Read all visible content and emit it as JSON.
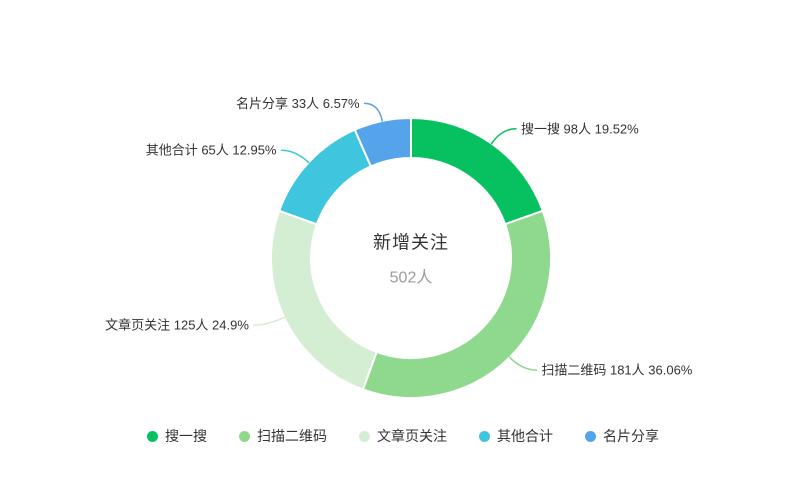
{
  "chart_data": {
    "type": "pie",
    "subtype": "donut",
    "center_title": "新增关注",
    "center_subtitle": "502人",
    "total": 502,
    "unit": "人",
    "label_format": "{name} {value}人 {percent}%",
    "legend_position": "bottom",
    "start_angle": "top",
    "direction": "clockwise",
    "series": [
      {
        "name": "搜一搜",
        "value": 98,
        "percent": "19.52",
        "color": "#07C160"
      },
      {
        "name": "扫描二维码",
        "value": 181,
        "percent": "36.06",
        "color": "#8ED98E"
      },
      {
        "name": "文章页关注",
        "value": 125,
        "percent": "24.9",
        "color": "#D3EED2"
      },
      {
        "name": "其他合计",
        "value": 65,
        "percent": "12.95",
        "color": "#3FC6DE"
      },
      {
        "name": "名片分享",
        "value": 33,
        "percent": "6.57",
        "color": "#55A3EA"
      }
    ],
    "legend": [
      "搜一搜",
      "扫描二维码",
      "文章页关注",
      "其他合计",
      "名片分享"
    ]
  },
  "colors": {
    "background": "#ffffff",
    "label_text": "#333333",
    "center_title_text": "#333333",
    "center_subtitle_text": "#9c9c9c",
    "slice_border": "#ffffff"
  }
}
